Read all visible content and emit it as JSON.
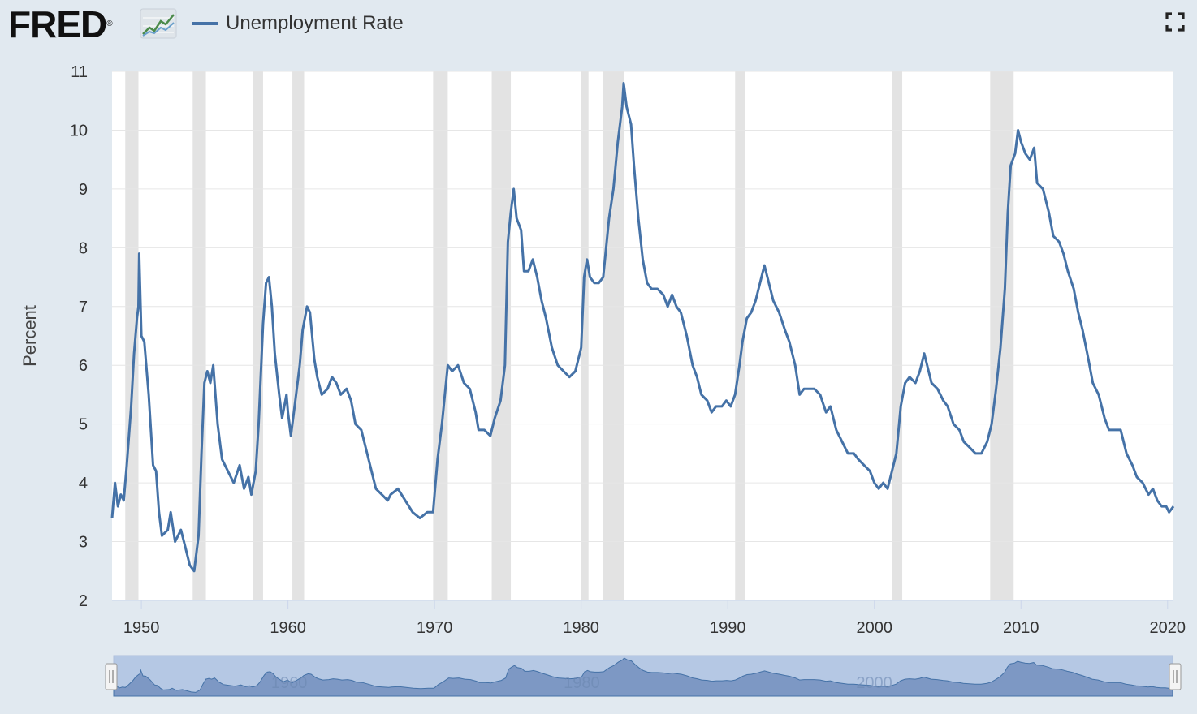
{
  "brand": {
    "name": "FRED",
    "reg_mark": "®",
    "logo_icon": "trend-chart-icon"
  },
  "toolbar": {
    "fullscreen_icon": "fullscreen-icon"
  },
  "colors": {
    "line": "#4572a7",
    "recession": "#e3e3e3",
    "navigator_fill": "#7d98c4",
    "navigator_mask": "#b5c8e4"
  },
  "chart_data": {
    "type": "line",
    "title": "",
    "xlabel": "",
    "ylabel": "Percent",
    "ylim": [
      2,
      11
    ],
    "xlim": [
      1948.0,
      2020.4
    ],
    "grid": "horizontal",
    "legend": "top-left",
    "y_ticks": [
      "2",
      "3",
      "4",
      "5",
      "6",
      "7",
      "8",
      "9",
      "10",
      "11"
    ],
    "x_ticks": [
      "1950",
      "1960",
      "1970",
      "1980",
      "1990",
      "2000",
      "2010",
      "2020"
    ],
    "navigator_ticks": [
      "1960",
      "1980",
      "2000"
    ],
    "recessions": [
      [
        1948.9,
        1949.8
      ],
      [
        1953.5,
        1954.4
      ],
      [
        1957.6,
        1958.3
      ],
      [
        1960.3,
        1961.1
      ],
      [
        1969.9,
        1970.9
      ],
      [
        1973.9,
        1975.2
      ],
      [
        1980.0,
        1980.5
      ],
      [
        1981.5,
        1982.9
      ],
      [
        1990.5,
        1991.2
      ],
      [
        2001.2,
        2001.9
      ],
      [
        2007.9,
        2009.5
      ]
    ],
    "series": [
      {
        "name": "Unemployment Rate",
        "points": [
          [
            1948.0,
            3.4
          ],
          [
            1948.2,
            4.0
          ],
          [
            1948.4,
            3.6
          ],
          [
            1948.6,
            3.8
          ],
          [
            1948.8,
            3.7
          ],
          [
            1949.0,
            4.3
          ],
          [
            1949.3,
            5.3
          ],
          [
            1949.5,
            6.2
          ],
          [
            1949.7,
            6.8
          ],
          [
            1949.8,
            7.0
          ],
          [
            1949.85,
            7.9
          ],
          [
            1950.0,
            6.5
          ],
          [
            1950.2,
            6.4
          ],
          [
            1950.5,
            5.5
          ],
          [
            1950.8,
            4.3
          ],
          [
            1951.0,
            4.2
          ],
          [
            1951.2,
            3.5
          ],
          [
            1951.4,
            3.1
          ],
          [
            1951.8,
            3.2
          ],
          [
            1952.0,
            3.5
          ],
          [
            1952.3,
            3.0
          ],
          [
            1952.7,
            3.2
          ],
          [
            1953.0,
            2.9
          ],
          [
            1953.3,
            2.6
          ],
          [
            1953.6,
            2.5
          ],
          [
            1953.9,
            3.1
          ],
          [
            1954.1,
            4.5
          ],
          [
            1954.3,
            5.7
          ],
          [
            1954.5,
            5.9
          ],
          [
            1954.7,
            5.7
          ],
          [
            1954.9,
            6.0
          ],
          [
            1955.2,
            5.0
          ],
          [
            1955.5,
            4.4
          ],
          [
            1955.9,
            4.2
          ],
          [
            1956.3,
            4.0
          ],
          [
            1956.7,
            4.3
          ],
          [
            1957.0,
            3.9
          ],
          [
            1957.3,
            4.1
          ],
          [
            1957.5,
            3.8
          ],
          [
            1957.8,
            4.2
          ],
          [
            1958.0,
            5.0
          ],
          [
            1958.3,
            6.7
          ],
          [
            1958.5,
            7.4
          ],
          [
            1958.7,
            7.5
          ],
          [
            1958.9,
            7.0
          ],
          [
            1959.1,
            6.2
          ],
          [
            1959.4,
            5.5
          ],
          [
            1959.6,
            5.1
          ],
          [
            1959.9,
            5.5
          ],
          [
            1960.0,
            5.2
          ],
          [
            1960.2,
            4.8
          ],
          [
            1960.5,
            5.4
          ],
          [
            1960.8,
            6.0
          ],
          [
            1961.0,
            6.6
          ],
          [
            1961.3,
            7.0
          ],
          [
            1961.5,
            6.9
          ],
          [
            1961.8,
            6.1
          ],
          [
            1962.0,
            5.8
          ],
          [
            1962.3,
            5.5
          ],
          [
            1962.7,
            5.6
          ],
          [
            1963.0,
            5.8
          ],
          [
            1963.3,
            5.7
          ],
          [
            1963.6,
            5.5
          ],
          [
            1964.0,
            5.6
          ],
          [
            1964.3,
            5.4
          ],
          [
            1964.6,
            5.0
          ],
          [
            1965.0,
            4.9
          ],
          [
            1965.4,
            4.5
          ],
          [
            1965.8,
            4.1
          ],
          [
            1966.0,
            3.9
          ],
          [
            1966.4,
            3.8
          ],
          [
            1966.8,
            3.7
          ],
          [
            1967.0,
            3.8
          ],
          [
            1967.5,
            3.9
          ],
          [
            1968.0,
            3.7
          ],
          [
            1968.5,
            3.5
          ],
          [
            1969.0,
            3.4
          ],
          [
            1969.5,
            3.5
          ],
          [
            1969.9,
            3.5
          ],
          [
            1970.2,
            4.4
          ],
          [
            1970.5,
            5.0
          ],
          [
            1970.9,
            6.0
          ],
          [
            1971.2,
            5.9
          ],
          [
            1971.6,
            6.0
          ],
          [
            1972.0,
            5.7
          ],
          [
            1972.4,
            5.6
          ],
          [
            1972.8,
            5.2
          ],
          [
            1973.0,
            4.9
          ],
          [
            1973.4,
            4.9
          ],
          [
            1973.8,
            4.8
          ],
          [
            1974.1,
            5.1
          ],
          [
            1974.5,
            5.4
          ],
          [
            1974.8,
            6.0
          ],
          [
            1975.0,
            8.1
          ],
          [
            1975.2,
            8.6
          ],
          [
            1975.4,
            9.0
          ],
          [
            1975.6,
            8.5
          ],
          [
            1975.9,
            8.3
          ],
          [
            1976.1,
            7.6
          ],
          [
            1976.4,
            7.6
          ],
          [
            1976.7,
            7.8
          ],
          [
            1977.0,
            7.5
          ],
          [
            1977.3,
            7.1
          ],
          [
            1977.6,
            6.8
          ],
          [
            1978.0,
            6.3
          ],
          [
            1978.4,
            6.0
          ],
          [
            1978.8,
            5.9
          ],
          [
            1979.2,
            5.8
          ],
          [
            1979.6,
            5.9
          ],
          [
            1980.0,
            6.3
          ],
          [
            1980.2,
            7.5
          ],
          [
            1980.4,
            7.8
          ],
          [
            1980.6,
            7.5
          ],
          [
            1980.9,
            7.4
          ],
          [
            1981.2,
            7.4
          ],
          [
            1981.5,
            7.5
          ],
          [
            1981.7,
            8.0
          ],
          [
            1981.9,
            8.5
          ],
          [
            1982.2,
            9.0
          ],
          [
            1982.5,
            9.8
          ],
          [
            1982.8,
            10.4
          ],
          [
            1982.9,
            10.8
          ],
          [
            1983.1,
            10.4
          ],
          [
            1983.4,
            10.1
          ],
          [
            1983.6,
            9.4
          ],
          [
            1983.9,
            8.5
          ],
          [
            1984.2,
            7.8
          ],
          [
            1984.5,
            7.4
          ],
          [
            1984.8,
            7.3
          ],
          [
            1985.2,
            7.3
          ],
          [
            1985.6,
            7.2
          ],
          [
            1985.9,
            7.0
          ],
          [
            1986.2,
            7.2
          ],
          [
            1986.5,
            7.0
          ],
          [
            1986.8,
            6.9
          ],
          [
            1987.2,
            6.5
          ],
          [
            1987.6,
            6.0
          ],
          [
            1987.9,
            5.8
          ],
          [
            1988.2,
            5.5
          ],
          [
            1988.6,
            5.4
          ],
          [
            1988.9,
            5.2
          ],
          [
            1989.2,
            5.3
          ],
          [
            1989.6,
            5.3
          ],
          [
            1989.9,
            5.4
          ],
          [
            1990.2,
            5.3
          ],
          [
            1990.5,
            5.5
          ],
          [
            1990.8,
            6.0
          ],
          [
            1991.0,
            6.4
          ],
          [
            1991.3,
            6.8
          ],
          [
            1991.6,
            6.9
          ],
          [
            1991.9,
            7.1
          ],
          [
            1992.2,
            7.4
          ],
          [
            1992.5,
            7.7
          ],
          [
            1992.8,
            7.4
          ],
          [
            1993.1,
            7.1
          ],
          [
            1993.5,
            6.9
          ],
          [
            1993.9,
            6.6
          ],
          [
            1994.2,
            6.4
          ],
          [
            1994.6,
            6.0
          ],
          [
            1994.9,
            5.5
          ],
          [
            1995.2,
            5.6
          ],
          [
            1995.6,
            5.6
          ],
          [
            1995.9,
            5.6
          ],
          [
            1996.3,
            5.5
          ],
          [
            1996.7,
            5.2
          ],
          [
            1997.0,
            5.3
          ],
          [
            1997.4,
            4.9
          ],
          [
            1997.8,
            4.7
          ],
          [
            1998.2,
            4.5
          ],
          [
            1998.6,
            4.5
          ],
          [
            1998.9,
            4.4
          ],
          [
            1999.3,
            4.3
          ],
          [
            1999.7,
            4.2
          ],
          [
            2000.0,
            4.0
          ],
          [
            2000.3,
            3.9
          ],
          [
            2000.6,
            4.0
          ],
          [
            2000.9,
            3.9
          ],
          [
            2001.2,
            4.2
          ],
          [
            2001.5,
            4.5
          ],
          [
            2001.8,
            5.3
          ],
          [
            2002.1,
            5.7
          ],
          [
            2002.4,
            5.8
          ],
          [
            2002.8,
            5.7
          ],
          [
            2003.1,
            5.9
          ],
          [
            2003.4,
            6.2
          ],
          [
            2003.6,
            6.0
          ],
          [
            2003.9,
            5.7
          ],
          [
            2004.3,
            5.6
          ],
          [
            2004.7,
            5.4
          ],
          [
            2005.0,
            5.3
          ],
          [
            2005.4,
            5.0
          ],
          [
            2005.8,
            4.9
          ],
          [
            2006.1,
            4.7
          ],
          [
            2006.5,
            4.6
          ],
          [
            2006.9,
            4.5
          ],
          [
            2007.3,
            4.5
          ],
          [
            2007.7,
            4.7
          ],
          [
            2008.0,
            5.0
          ],
          [
            2008.3,
            5.6
          ],
          [
            2008.6,
            6.3
          ],
          [
            2008.9,
            7.3
          ],
          [
            2009.1,
            8.6
          ],
          [
            2009.3,
            9.4
          ],
          [
            2009.6,
            9.6
          ],
          [
            2009.8,
            10.0
          ],
          [
            2010.0,
            9.8
          ],
          [
            2010.3,
            9.6
          ],
          [
            2010.6,
            9.5
          ],
          [
            2010.9,
            9.7
          ],
          [
            2011.1,
            9.1
          ],
          [
            2011.5,
            9.0
          ],
          [
            2011.9,
            8.6
          ],
          [
            2012.2,
            8.2
          ],
          [
            2012.6,
            8.1
          ],
          [
            2012.9,
            7.9
          ],
          [
            2013.2,
            7.6
          ],
          [
            2013.6,
            7.3
          ],
          [
            2013.9,
            6.9
          ],
          [
            2014.2,
            6.6
          ],
          [
            2014.6,
            6.1
          ],
          [
            2014.9,
            5.7
          ],
          [
            2015.3,
            5.5
          ],
          [
            2015.7,
            5.1
          ],
          [
            2016.0,
            4.9
          ],
          [
            2016.4,
            4.9
          ],
          [
            2016.8,
            4.9
          ],
          [
            2017.2,
            4.5
          ],
          [
            2017.6,
            4.3
          ],
          [
            2017.9,
            4.1
          ],
          [
            2018.3,
            4.0
          ],
          [
            2018.7,
            3.8
          ],
          [
            2019.0,
            3.9
          ],
          [
            2019.3,
            3.7
          ],
          [
            2019.6,
            3.6
          ],
          [
            2019.9,
            3.6
          ],
          [
            2020.1,
            3.5
          ],
          [
            2020.4,
            3.6
          ]
        ]
      }
    ]
  }
}
